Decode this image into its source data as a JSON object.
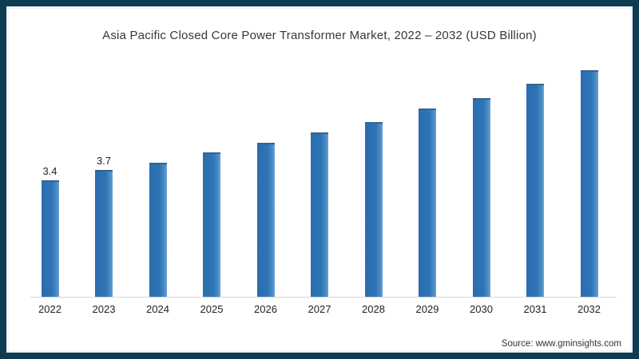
{
  "frame": {
    "border_color": "#0d3c52",
    "inner_strip_color": "#edf4f9",
    "background": "#ffffff"
  },
  "chart_data": {
    "type": "bar",
    "title": "Asia Pacific Closed Core Power Transformer Market, 2022 – 2032 (USD Billion)",
    "categories": [
      "2022",
      "2023",
      "2024",
      "2025",
      "2026",
      "2027",
      "2028",
      "2029",
      "2030",
      "2031",
      "2032"
    ],
    "values": [
      3.4,
      3.7,
      3.9,
      4.2,
      4.5,
      4.8,
      5.1,
      5.5,
      5.8,
      6.2,
      6.6
    ],
    "value_labels": [
      "3.4",
      "3.7",
      "",
      "",
      "",
      "",
      "",
      "",
      "",
      "",
      ""
    ],
    "xlabel": "",
    "ylabel": "",
    "ylim": [
      0,
      7
    ],
    "grid": false,
    "legend": "none",
    "bar_color": "#2e75b6",
    "bar_edge_highlight": "#6ba3d4",
    "bar_top_edge": "#39618f",
    "axis_color": "#d9d9d9",
    "label_color": "#222222",
    "title_color": "#373737"
  },
  "source": {
    "label": "Source: www.gminsights.com"
  }
}
